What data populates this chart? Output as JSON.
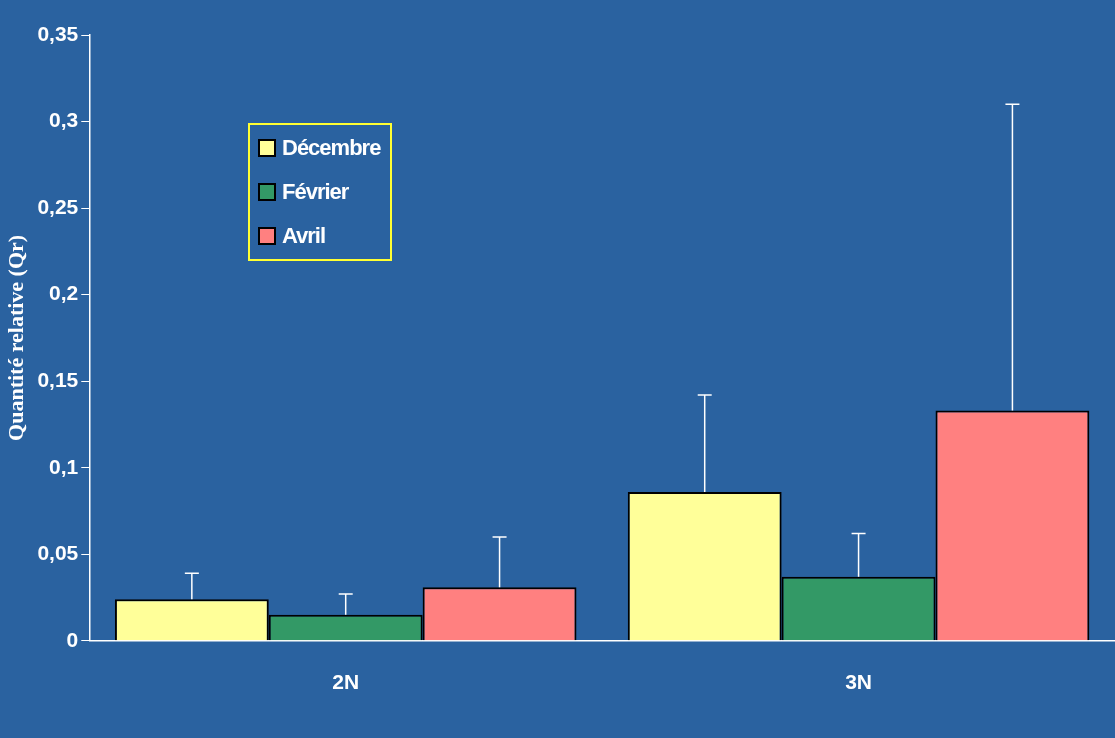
{
  "chart_data": {
    "type": "bar",
    "ylabel": "Quantité relative (Qr)",
    "categories": [
      "2N",
      "3N"
    ],
    "series": [
      {
        "name": "Décembre",
        "color": "#ffff99",
        "values": [
          0.024,
          0.086
        ],
        "errors": [
          [
            0.024,
            0.039
          ],
          [
            0.086,
            0.142
          ]
        ]
      },
      {
        "name": "Février",
        "color": "#339966",
        "values": [
          0.015,
          0.037
        ],
        "errors": [
          [
            0.015,
            0.027
          ],
          [
            0.037,
            0.062
          ]
        ]
      },
      {
        "name": "Avril",
        "color": "#ff8080",
        "values": [
          0.031,
          0.133
        ],
        "errors": [
          [
            0.031,
            0.06
          ],
          [
            0.133,
            0.31
          ]
        ]
      }
    ],
    "ylim": [
      0,
      0.35
    ],
    "yticks": [
      0,
      {
        "value": 0.05,
        "label": "0,05"
      },
      {
        "value": 0.1,
        "label": "0,1"
      },
      {
        "value": 0.15,
        "label": "0,15"
      },
      {
        "value": 0.2,
        "label": "0,2"
      },
      {
        "value": 0.25,
        "label": "0,25"
      },
      {
        "value": 0.3,
        "label": "0,3"
      },
      {
        "value": 0.35,
        "label": "0,35"
      }
    ],
    "grid": false,
    "legend": "top left"
  }
}
